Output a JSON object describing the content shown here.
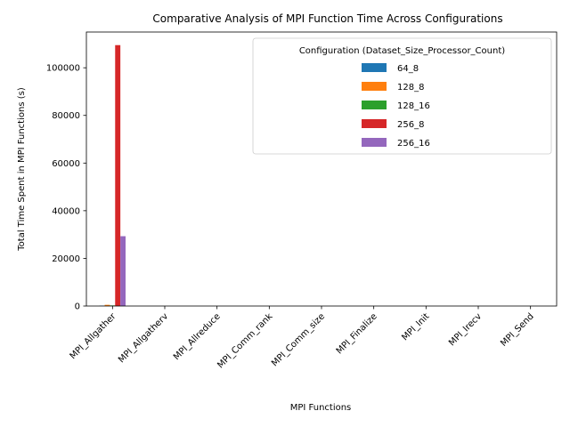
{
  "chart_data": {
    "type": "bar",
    "title": "Comparative Analysis of MPI Function Time Across Configurations",
    "xlabel": "MPI Functions",
    "ylabel": "Total Time Spent in MPI Functions (s)",
    "ylim": [
      0,
      115000
    ],
    "yticks": [
      0,
      20000,
      40000,
      60000,
      80000,
      100000
    ],
    "ytick_labels": [
      "0",
      "20000",
      "40000",
      "60000",
      "80000",
      "100000"
    ],
    "grid": false,
    "legend": {
      "title": "Configuration (Dataset_Size_Processor_Count)",
      "position": "top-right"
    },
    "categories": [
      "MPI_Allgather",
      "MPI_Allgatherv",
      "MPI_Allreduce",
      "MPI_Comm_rank",
      "MPI_Comm_size",
      "MPI_Finalize",
      "MPI_Init",
      "MPI_Irecv",
      "MPI_Send"
    ],
    "series": [
      {
        "name": "64_8",
        "color": "#1f77b4",
        "values": [
          150,
          0,
          0,
          0,
          0,
          0,
          0,
          0,
          0
        ]
      },
      {
        "name": "128_8",
        "color": "#ff7f0e",
        "values": [
          500,
          0,
          0,
          0,
          0,
          0,
          0,
          0,
          0
        ]
      },
      {
        "name": "128_16",
        "color": "#2ca02c",
        "values": [
          250,
          0,
          0,
          0,
          0,
          0,
          0,
          0,
          0
        ]
      },
      {
        "name": "256_8",
        "color": "#d62728",
        "values": [
          109500,
          0,
          0,
          0,
          0,
          0,
          0,
          0,
          0
        ]
      },
      {
        "name": "256_16",
        "color": "#9467bd",
        "values": [
          29300,
          0,
          0,
          0,
          0,
          0,
          0,
          0,
          0
        ]
      }
    ]
  }
}
